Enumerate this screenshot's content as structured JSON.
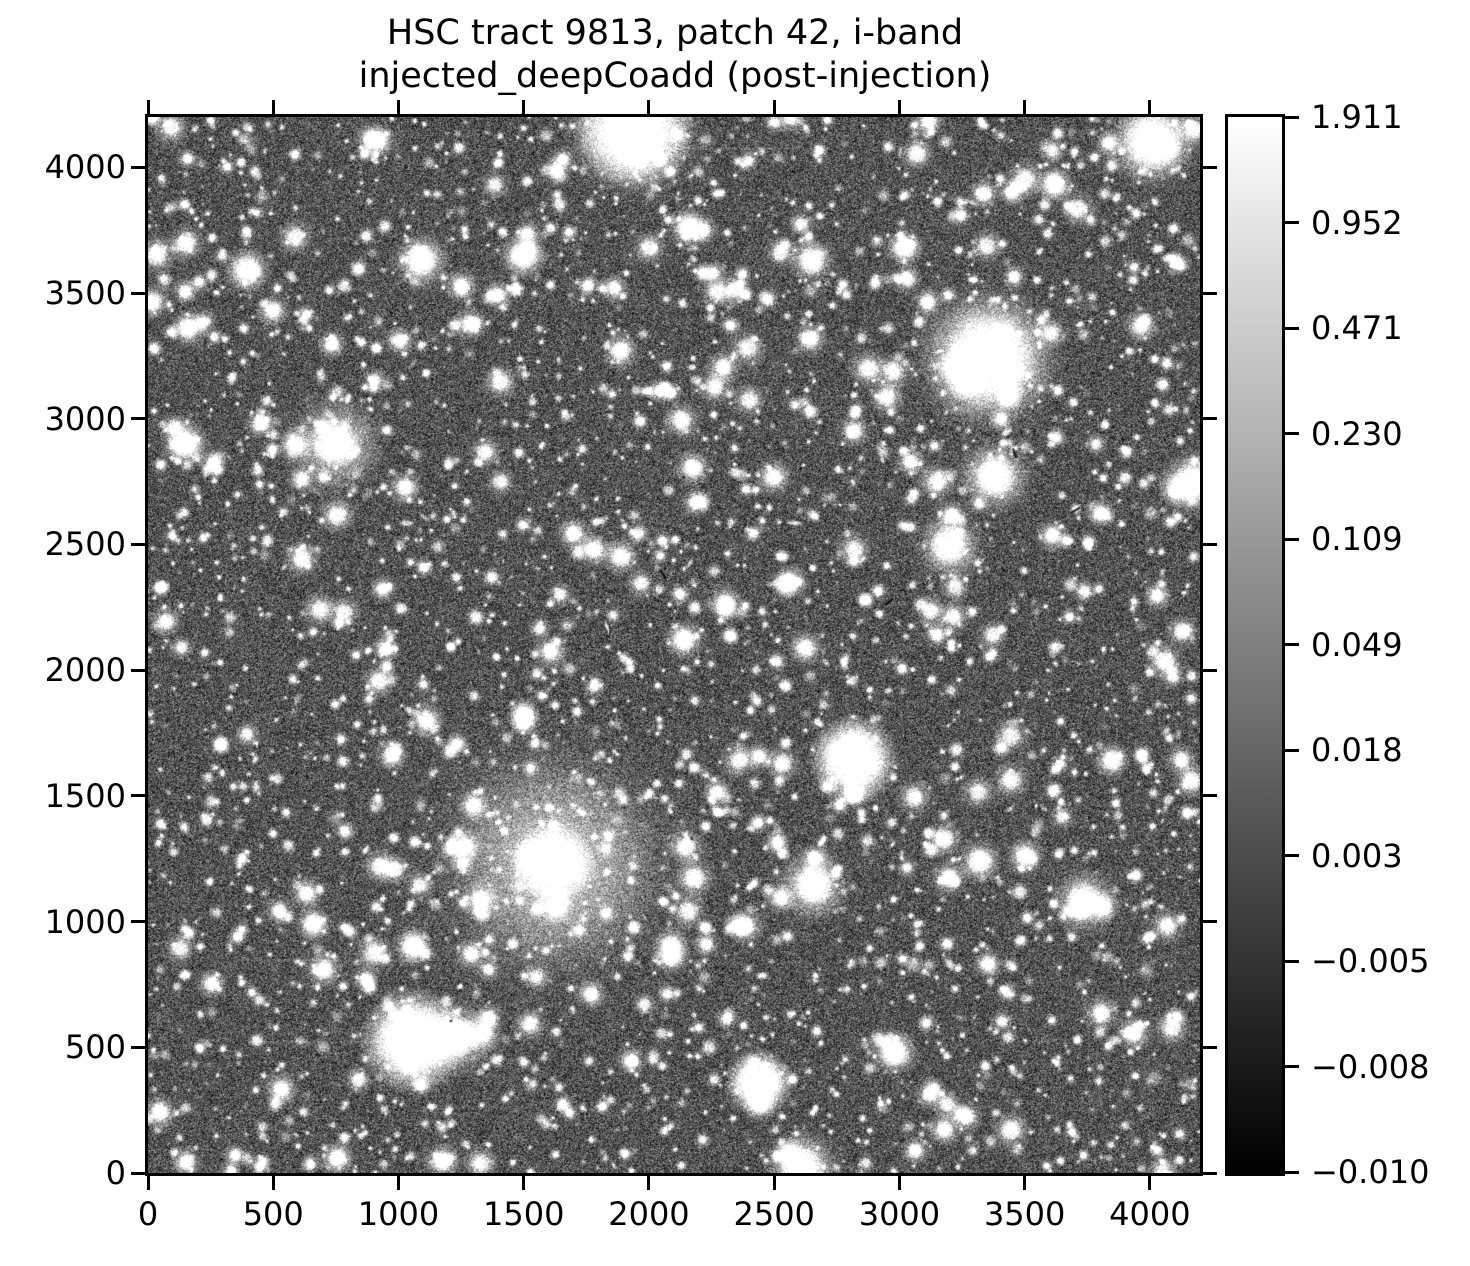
{
  "chart_data": {
    "type": "heatmap",
    "title_line1": "HSC tract 9813, patch 42, i-band",
    "title_line2": "injected_deepCoadd (post-injection)",
    "xlabel": "",
    "ylabel": "",
    "xlim": [
      0,
      4200
    ],
    "ylim": [
      0,
      4200
    ],
    "x_ticks": [
      0,
      500,
      1000,
      1500,
      2000,
      2500,
      3000,
      3500,
      4000
    ],
    "x_tick_labels": [
      "0",
      "500",
      "1000",
      "1500",
      "2000",
      "2500",
      "3000",
      "3500",
      "4000"
    ],
    "y_ticks": [
      0,
      500,
      1000,
      1500,
      2000,
      2500,
      3000,
      3500,
      4000
    ],
    "y_tick_labels": [
      "0",
      "500",
      "1000",
      "1500",
      "2000",
      "2500",
      "3000",
      "3500",
      "4000"
    ],
    "grid": false,
    "colorbar": {
      "cmap": "gray",
      "scale": "asinh",
      "vmin": -0.01,
      "vmax": 1.911,
      "tick_values": [
        1.911,
        0.952,
        0.471,
        0.23,
        0.109,
        0.049,
        0.018,
        0.003,
        -0.005,
        -0.008,
        -0.01
      ],
      "tick_labels": [
        "1.911",
        "0.952",
        "0.471",
        "0.230",
        "0.109",
        "0.049",
        "0.018",
        "0.003",
        "−0.005",
        "−0.008",
        "−0.010"
      ],
      "top_color": "#ffffff",
      "bottom_color": "#000000"
    },
    "image_content": {
      "description": "dense grayscale deep-coadd star field: grainy noise background, thousands of faint point sources, extended galaxies, several saturated bright stars with large halos",
      "noise": {
        "mean_gray": 84,
        "sigma": 37
      },
      "counts": {
        "faint_stars": 3000,
        "medium_stars": 300,
        "galaxies": 95
      },
      "bright_sources": [
        {
          "x": 1940,
          "y": 4150,
          "core": 105,
          "halo": 300
        },
        {
          "x": 4010,
          "y": 4105,
          "core": 62,
          "halo": 210
        },
        {
          "x": 3356,
          "y": 3240,
          "core": 100,
          "halo": 330
        },
        {
          "x": 748,
          "y": 2900,
          "core": 50,
          "halo": 220
        },
        {
          "x": 1620,
          "y": 1230,
          "core": 80,
          "halo": 480,
          "halo2": 640
        },
        {
          "x": 2816,
          "y": 1645,
          "core": 70,
          "halo": 185,
          "flat": true
        },
        {
          "x": 2656,
          "y": 1145,
          "core": 42,
          "halo": 170
        },
        {
          "x": 3736,
          "y": 1080,
          "core": 38,
          "halo": 150
        },
        {
          "x": 396,
          "y": 3590,
          "core": 30,
          "halo": 110
        },
        {
          "x": 1090,
          "y": 3630,
          "core": 34,
          "halo": 130
        },
        {
          "x": 1500,
          "y": 3650,
          "core": 30,
          "halo": 110
        },
        {
          "x": 2160,
          "y": 3760,
          "core": 26,
          "halo": 95
        },
        {
          "x": 2650,
          "y": 3630,
          "core": 28,
          "halo": 105
        },
        {
          "x": 3020,
          "y": 3680,
          "core": 24,
          "halo": 90
        },
        {
          "x": 3620,
          "y": 3930,
          "core": 24,
          "halo": 90
        },
        {
          "x": 3380,
          "y": 2770,
          "core": 44,
          "halo": 170
        },
        {
          "x": 3200,
          "y": 2495,
          "core": 40,
          "halo": 155
        },
        {
          "x": 4168,
          "y": 2746,
          "core": 40,
          "halo": 145
        },
        {
          "x": 150,
          "y": 2900,
          "core": 30,
          "halo": 110
        },
        {
          "x": 160,
          "y": 3360,
          "core": 22,
          "halo": 85
        },
        {
          "x": 1240,
          "y": 541,
          "core": 42,
          "halo": 170
        },
        {
          "x": 1060,
          "y": 525,
          "core": 20,
          "halo": 220,
          "flat": true
        },
        {
          "x": 2440,
          "y": 360,
          "core": 34,
          "halo": 140,
          "flat": true
        },
        {
          "x": 2980,
          "y": 480,
          "core": 30,
          "halo": 110
        },
        {
          "x": 2610,
          "y": 20,
          "core": 46,
          "halo": 170
        },
        {
          "x": 3320,
          "y": 1240,
          "core": 26,
          "halo": 100
        },
        {
          "x": 3848,
          "y": 1640,
          "core": 22,
          "halo": 85
        },
        {
          "x": 660,
          "y": 990,
          "core": 22,
          "halo": 85
        },
        {
          "x": 1060,
          "y": 902,
          "core": 26,
          "halo": 95
        },
        {
          "x": 2140,
          "y": 2120,
          "core": 24,
          "halo": 95
        },
        {
          "x": 1780,
          "y": 2480,
          "core": 20,
          "halo": 80
        }
      ],
      "streak_artifacts": [
        {
          "x1": 400,
          "x2": 1150,
          "y": 520
        },
        {
          "x1": 340,
          "x2": 1230,
          "y": 845
        },
        {
          "x1": 1990,
          "x2": 2740,
          "y": 4075
        },
        {
          "x1": 3050,
          "x2": 3560,
          "y": 2790
        },
        {
          "x1": 2180,
          "x2": 2720,
          "y": 1170
        }
      ]
    }
  }
}
